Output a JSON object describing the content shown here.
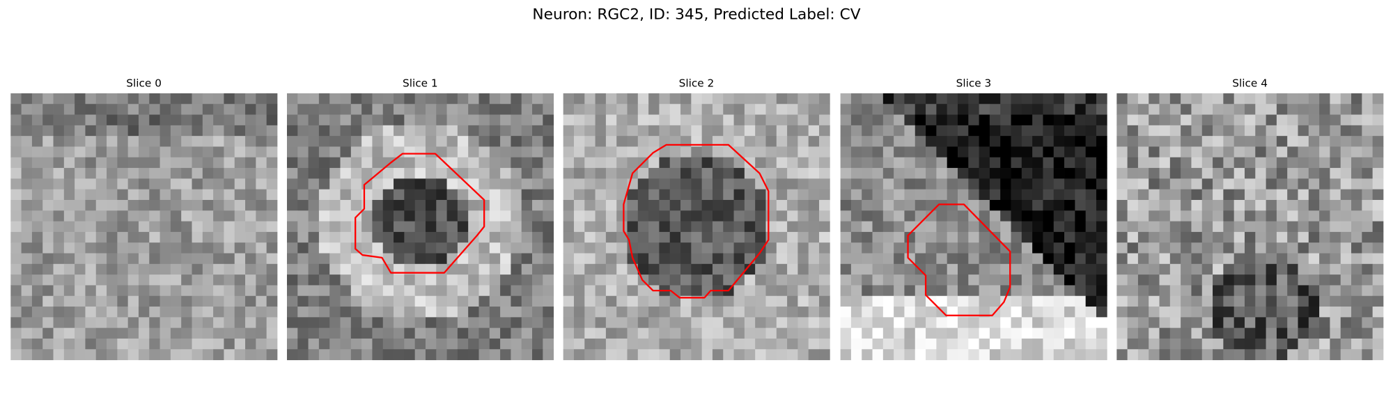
{
  "title": "Neuron: RGC2, ID: 345, Predicted Label: CV",
  "panels": [
    {
      "title": "Slice 0"
    },
    {
      "title": "Slice 1"
    },
    {
      "title": "Slice 2"
    },
    {
      "title": "Slice 3"
    },
    {
      "title": "Slice 4"
    }
  ]
}
